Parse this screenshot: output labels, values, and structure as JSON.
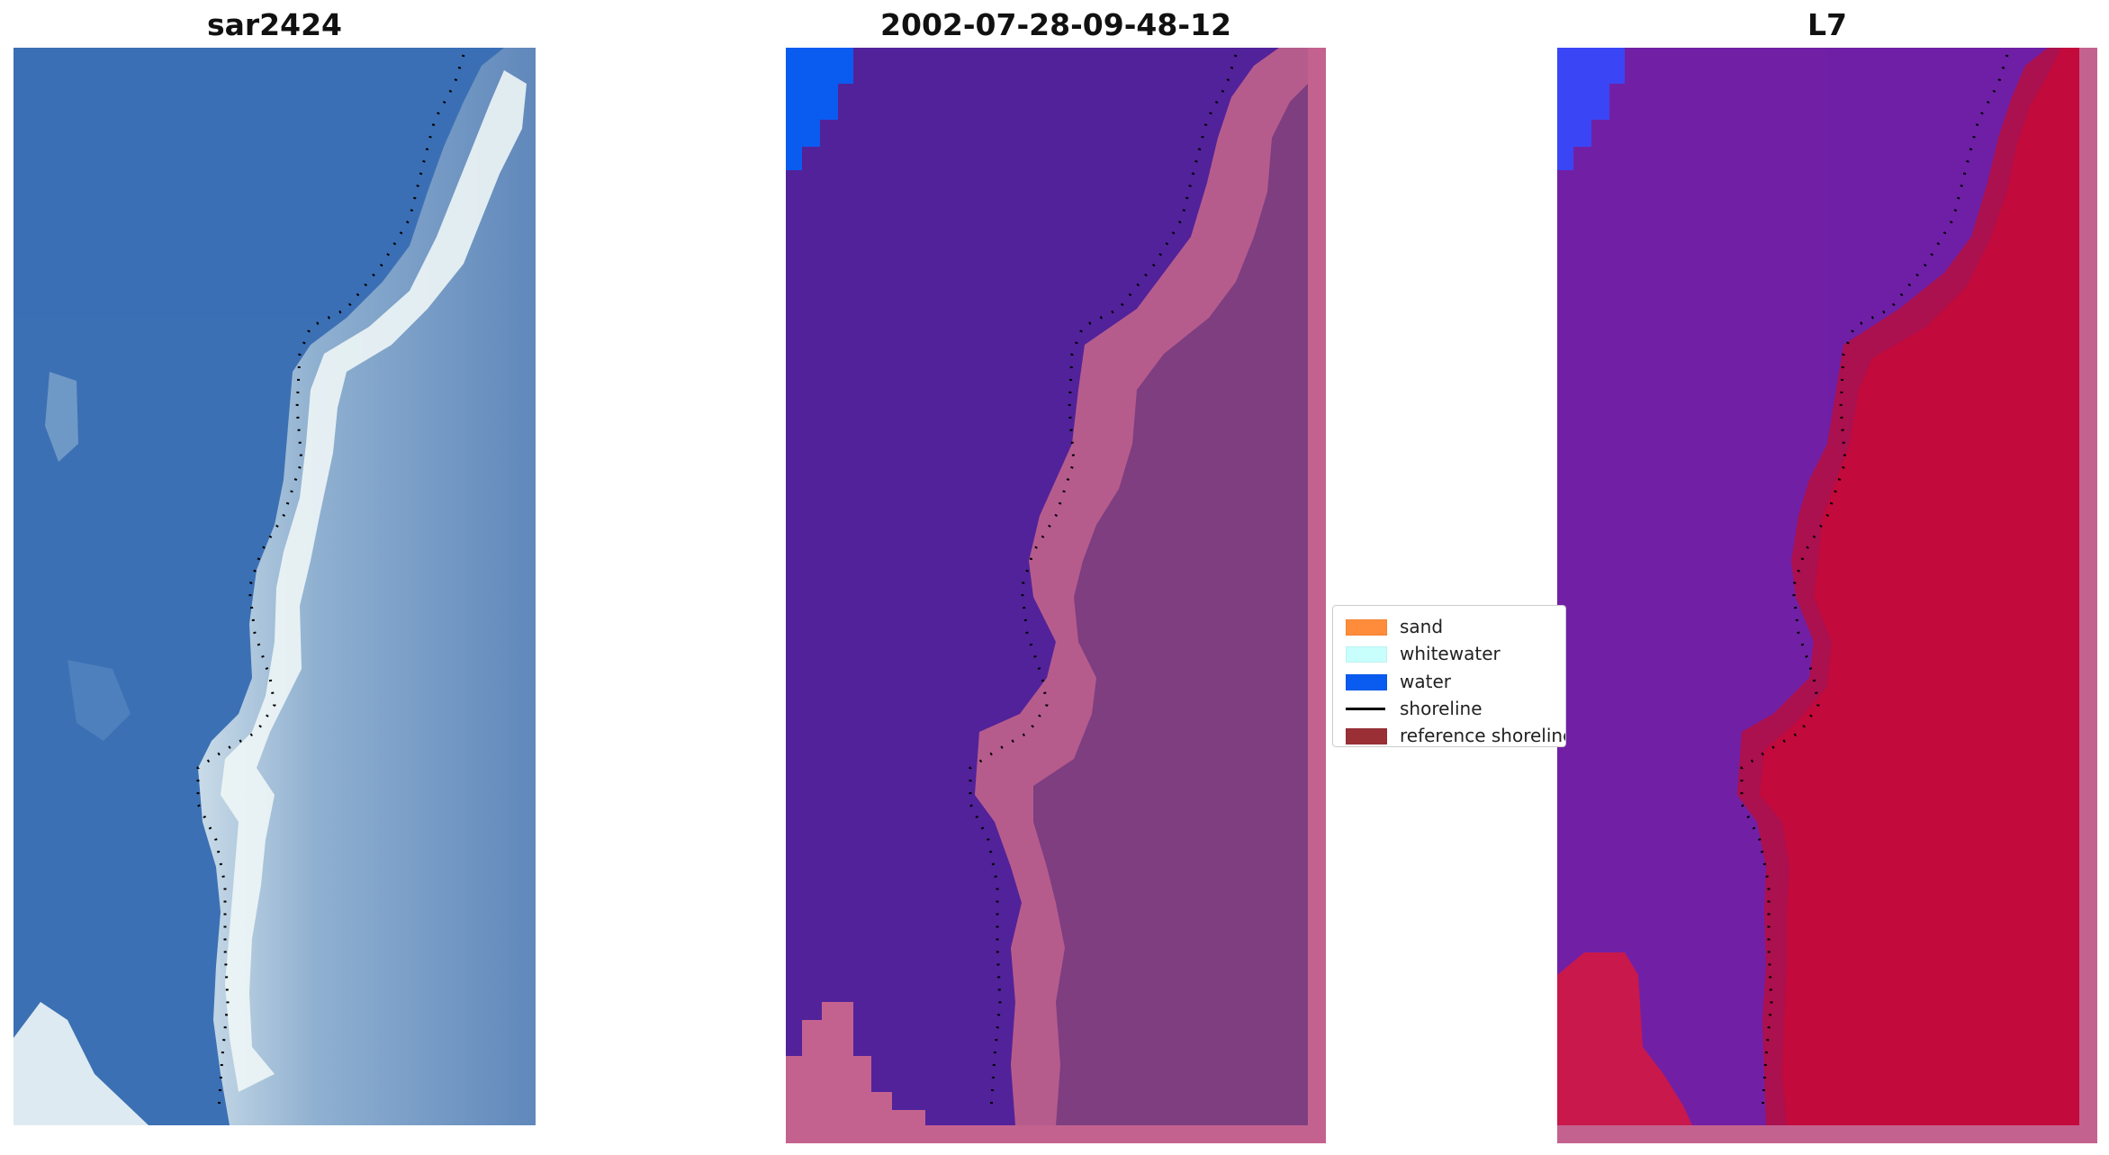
{
  "panels": [
    {
      "title": "sar2424"
    },
    {
      "title": "2002-07-28-09-48-12"
    },
    {
      "title": "L7"
    }
  ],
  "legend": {
    "entries": [
      {
        "label": "sand",
        "type": "patch",
        "color": "#ff8c3a"
      },
      {
        "label": "whitewater",
        "type": "patch",
        "color": "#c8fffc"
      },
      {
        "label": "water",
        "type": "patch",
        "color": "#0a5cf0"
      },
      {
        "label": "shoreline",
        "type": "line",
        "color": "#000000"
      },
      {
        "label": "reference shoreline",
        "type": "patch",
        "color": "#9a3036"
      }
    ]
  },
  "colors": {
    "rgb_water": "#3a70b4",
    "rgb_surf": "#e8f2f4",
    "rgb_land": "#6f95c0",
    "class_water": "#50229a",
    "class_land": "#7e3f80",
    "class_beach": "#c0608e",
    "class_blue": "#0a5cf0",
    "mndwi_water": "#6c1ea6",
    "mndwi_land": "#c20a3c",
    "mndwi_blue": "#3a46f5"
  }
}
